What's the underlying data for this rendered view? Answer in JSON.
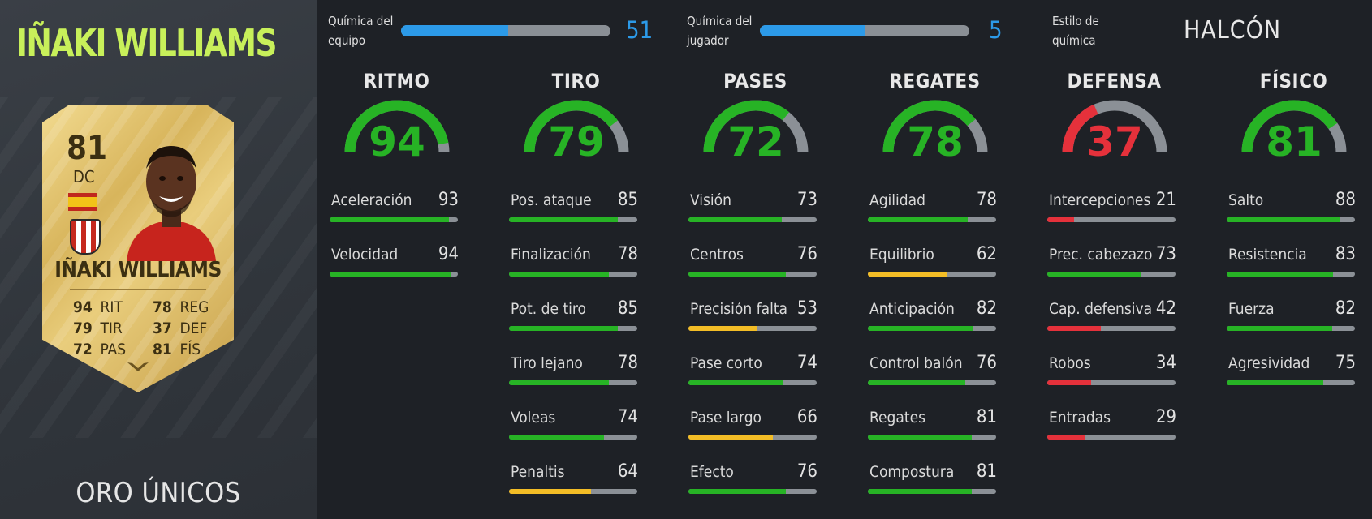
{
  "player": {
    "name": "IÑAKI WILLIAMS",
    "card_type": "ORO ÚNICOS"
  },
  "card": {
    "rating": "81",
    "position": "DC",
    "name": "IÑAKI WILLIAMS",
    "stats": [
      {
        "value": "94",
        "label": "RIT"
      },
      {
        "value": "79",
        "label": "TIR"
      },
      {
        "value": "72",
        "label": "PAS"
      },
      {
        "value": "78",
        "label": "REG"
      },
      {
        "value": "37",
        "label": "DEF"
      },
      {
        "value": "81",
        "label": "FÍS"
      }
    ]
  },
  "chemistry": {
    "team": {
      "label_1": "Química del",
      "label_2": "equipo",
      "value": "51",
      "max": 100
    },
    "player": {
      "label_1": "Química del",
      "label_2": "jugador",
      "value": "5",
      "max": 10
    },
    "style": {
      "label_1": "Estilo de",
      "label_2": "química",
      "value": "HALCÓN"
    }
  },
  "colors": {
    "green": "#27b325",
    "yellow": "#f3bd26",
    "red": "#e5313b",
    "blue": "#2c9ae8",
    "gray": "#8b9096",
    "name_green": "#c8f05a"
  },
  "categories": [
    {
      "title": "RITMO",
      "value": 94,
      "attributes": [
        {
          "label": "Aceleración",
          "value": 93
        },
        {
          "label": "Velocidad",
          "value": 94
        }
      ]
    },
    {
      "title": "TIRO",
      "value": 79,
      "attributes": [
        {
          "label": "Pos. ataque",
          "value": 85
        },
        {
          "label": "Finalización",
          "value": 78
        },
        {
          "label": "Pot. de tiro",
          "value": 85
        },
        {
          "label": "Tiro lejano",
          "value": 78
        },
        {
          "label": "Voleas",
          "value": 74
        },
        {
          "label": "Penaltis",
          "value": 64
        }
      ]
    },
    {
      "title": "PASES",
      "value": 72,
      "attributes": [
        {
          "label": "Visión",
          "value": 73
        },
        {
          "label": "Centros",
          "value": 76
        },
        {
          "label": "Precisión falta",
          "value": 53
        },
        {
          "label": "Pase corto",
          "value": 74
        },
        {
          "label": "Pase largo",
          "value": 66
        },
        {
          "label": "Efecto",
          "value": 76
        }
      ]
    },
    {
      "title": "REGATES",
      "value": 78,
      "attributes": [
        {
          "label": "Agilidad",
          "value": 78
        },
        {
          "label": "Equilibrio",
          "value": 62
        },
        {
          "label": "Anticipación",
          "value": 82
        },
        {
          "label": "Control balón",
          "value": 76
        },
        {
          "label": "Regates",
          "value": 81
        },
        {
          "label": "Compostura",
          "value": 81
        }
      ]
    },
    {
      "title": "DEFENSA",
      "value": 37,
      "attributes": [
        {
          "label": "Intercepciones",
          "value": 21
        },
        {
          "label": "Prec. cabezazo",
          "value": 73
        },
        {
          "label": "Cap. defensiva",
          "value": 42
        },
        {
          "label": "Robos",
          "value": 34
        },
        {
          "label": "Entradas",
          "value": 29
        }
      ]
    },
    {
      "title": "FÍSICO",
      "value": 81,
      "attributes": [
        {
          "label": "Salto",
          "value": 88
        },
        {
          "label": "Resistencia",
          "value": 83
        },
        {
          "label": "Fuerza",
          "value": 82
        },
        {
          "label": "Agresividad",
          "value": 75
        }
      ]
    }
  ]
}
